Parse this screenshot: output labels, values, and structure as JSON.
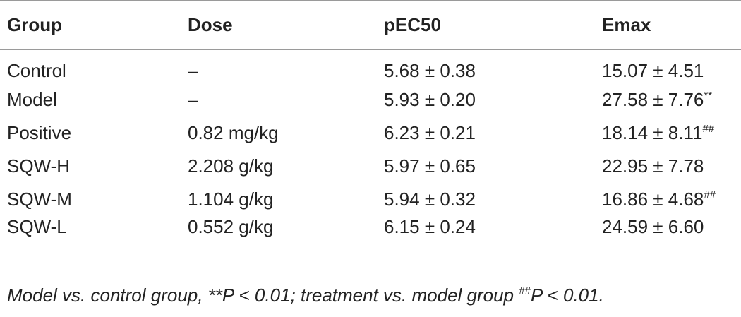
{
  "table": {
    "headers": [
      "Group",
      "Dose",
      "pEC50",
      "Emax"
    ],
    "rows": [
      {
        "group": "Control",
        "dose": "–",
        "pec50": "5.68 ± 0.38",
        "emax": "15.07 ± 4.51",
        "emax_sup": ""
      },
      {
        "group": "Model",
        "dose": "–",
        "pec50": "5.93 ± 0.20",
        "emax": "27.58 ± 7.76",
        "emax_sup": "**"
      },
      {
        "group": "Positive",
        "dose": "0.82 mg/kg",
        "pec50": "6.23 ± 0.21",
        "emax": "18.14 ± 8.11",
        "emax_sup": "##"
      },
      {
        "group": "SQW-H",
        "dose": "2.208 g/kg",
        "pec50": "5.97 ± 0.65",
        "emax": "22.95 ± 7.78",
        "emax_sup": ""
      },
      {
        "group": "SQW-M",
        "dose": "1.104 g/kg",
        "pec50": "5.94 ± 0.32",
        "emax": "16.86 ± 4.68",
        "emax_sup": "##"
      },
      {
        "group": "SQW-L",
        "dose": "0.552 g/kg",
        "pec50": "6.15 ± 0.24",
        "emax": "24.59 ± 6.60",
        "emax_sup": ""
      }
    ]
  },
  "footnote": {
    "part1": "Model vs. control group, **P < 0.01; treatment vs. model group ",
    "sup": "##",
    "part2": "P < 0.01."
  }
}
